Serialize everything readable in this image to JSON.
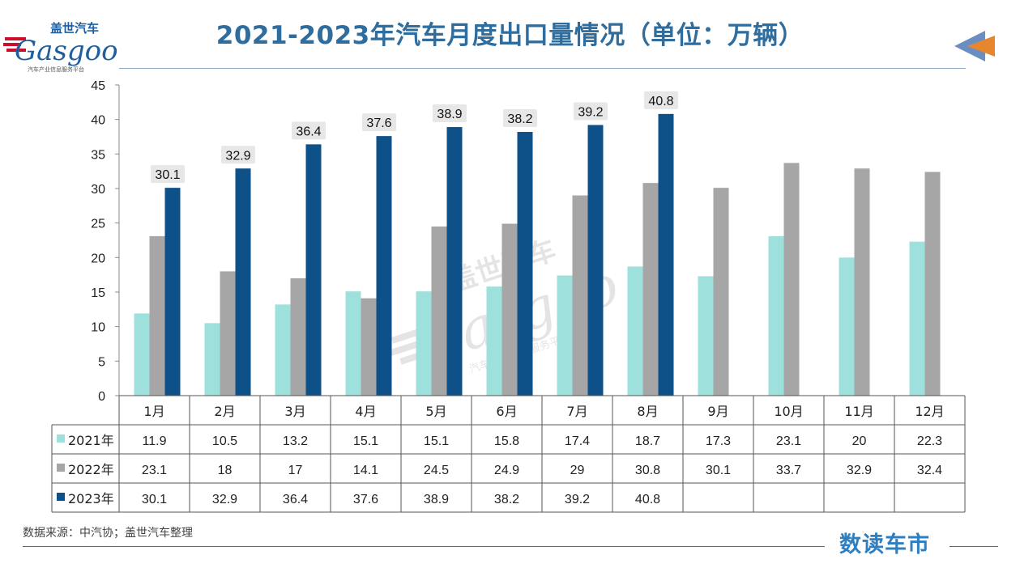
{
  "title": "2021-2023年汽车月度出口量情况（单位：万辆）",
  "logo": {
    "cn": "盖世汽车",
    "en": "Gasgoo",
    "tagline": "汽车产业信息服务平台"
  },
  "source": "数据来源：中汽协；盖世汽车整理",
  "brand": "数读车市",
  "colors": {
    "s2021": "#9ee0dc",
    "s2022": "#a6a6a6",
    "s2023": "#0e5088",
    "title": "#2e6d9e",
    "brand": "#2d7fc1",
    "arrow_blue": "#6b8ec2",
    "arrow_orange": "#e8862e"
  },
  "chart_data": {
    "type": "bar",
    "categories": [
      "1月",
      "2月",
      "3月",
      "4月",
      "5月",
      "6月",
      "7月",
      "8月",
      "9月",
      "10月",
      "11月",
      "12月"
    ],
    "series": [
      {
        "name": "2021年",
        "values": [
          11.9,
          10.5,
          13.2,
          15.1,
          15.1,
          15.8,
          17.4,
          18.7,
          17.3,
          23.1,
          20,
          22.3
        ]
      },
      {
        "name": "2022年",
        "values": [
          23.1,
          18,
          17,
          14.1,
          24.5,
          24.9,
          29,
          30.8,
          30.1,
          33.7,
          32.9,
          32.4
        ]
      },
      {
        "name": "2023年",
        "values": [
          30.1,
          32.9,
          36.4,
          37.6,
          38.9,
          38.2,
          39.2,
          40.8,
          null,
          null,
          null,
          null
        ]
      }
    ],
    "ylim": [
      0,
      45
    ],
    "yticks": [
      0,
      5,
      10,
      15,
      20,
      25,
      30,
      35,
      40,
      45
    ],
    "data_labels_series": "2023年",
    "data_table": true
  }
}
